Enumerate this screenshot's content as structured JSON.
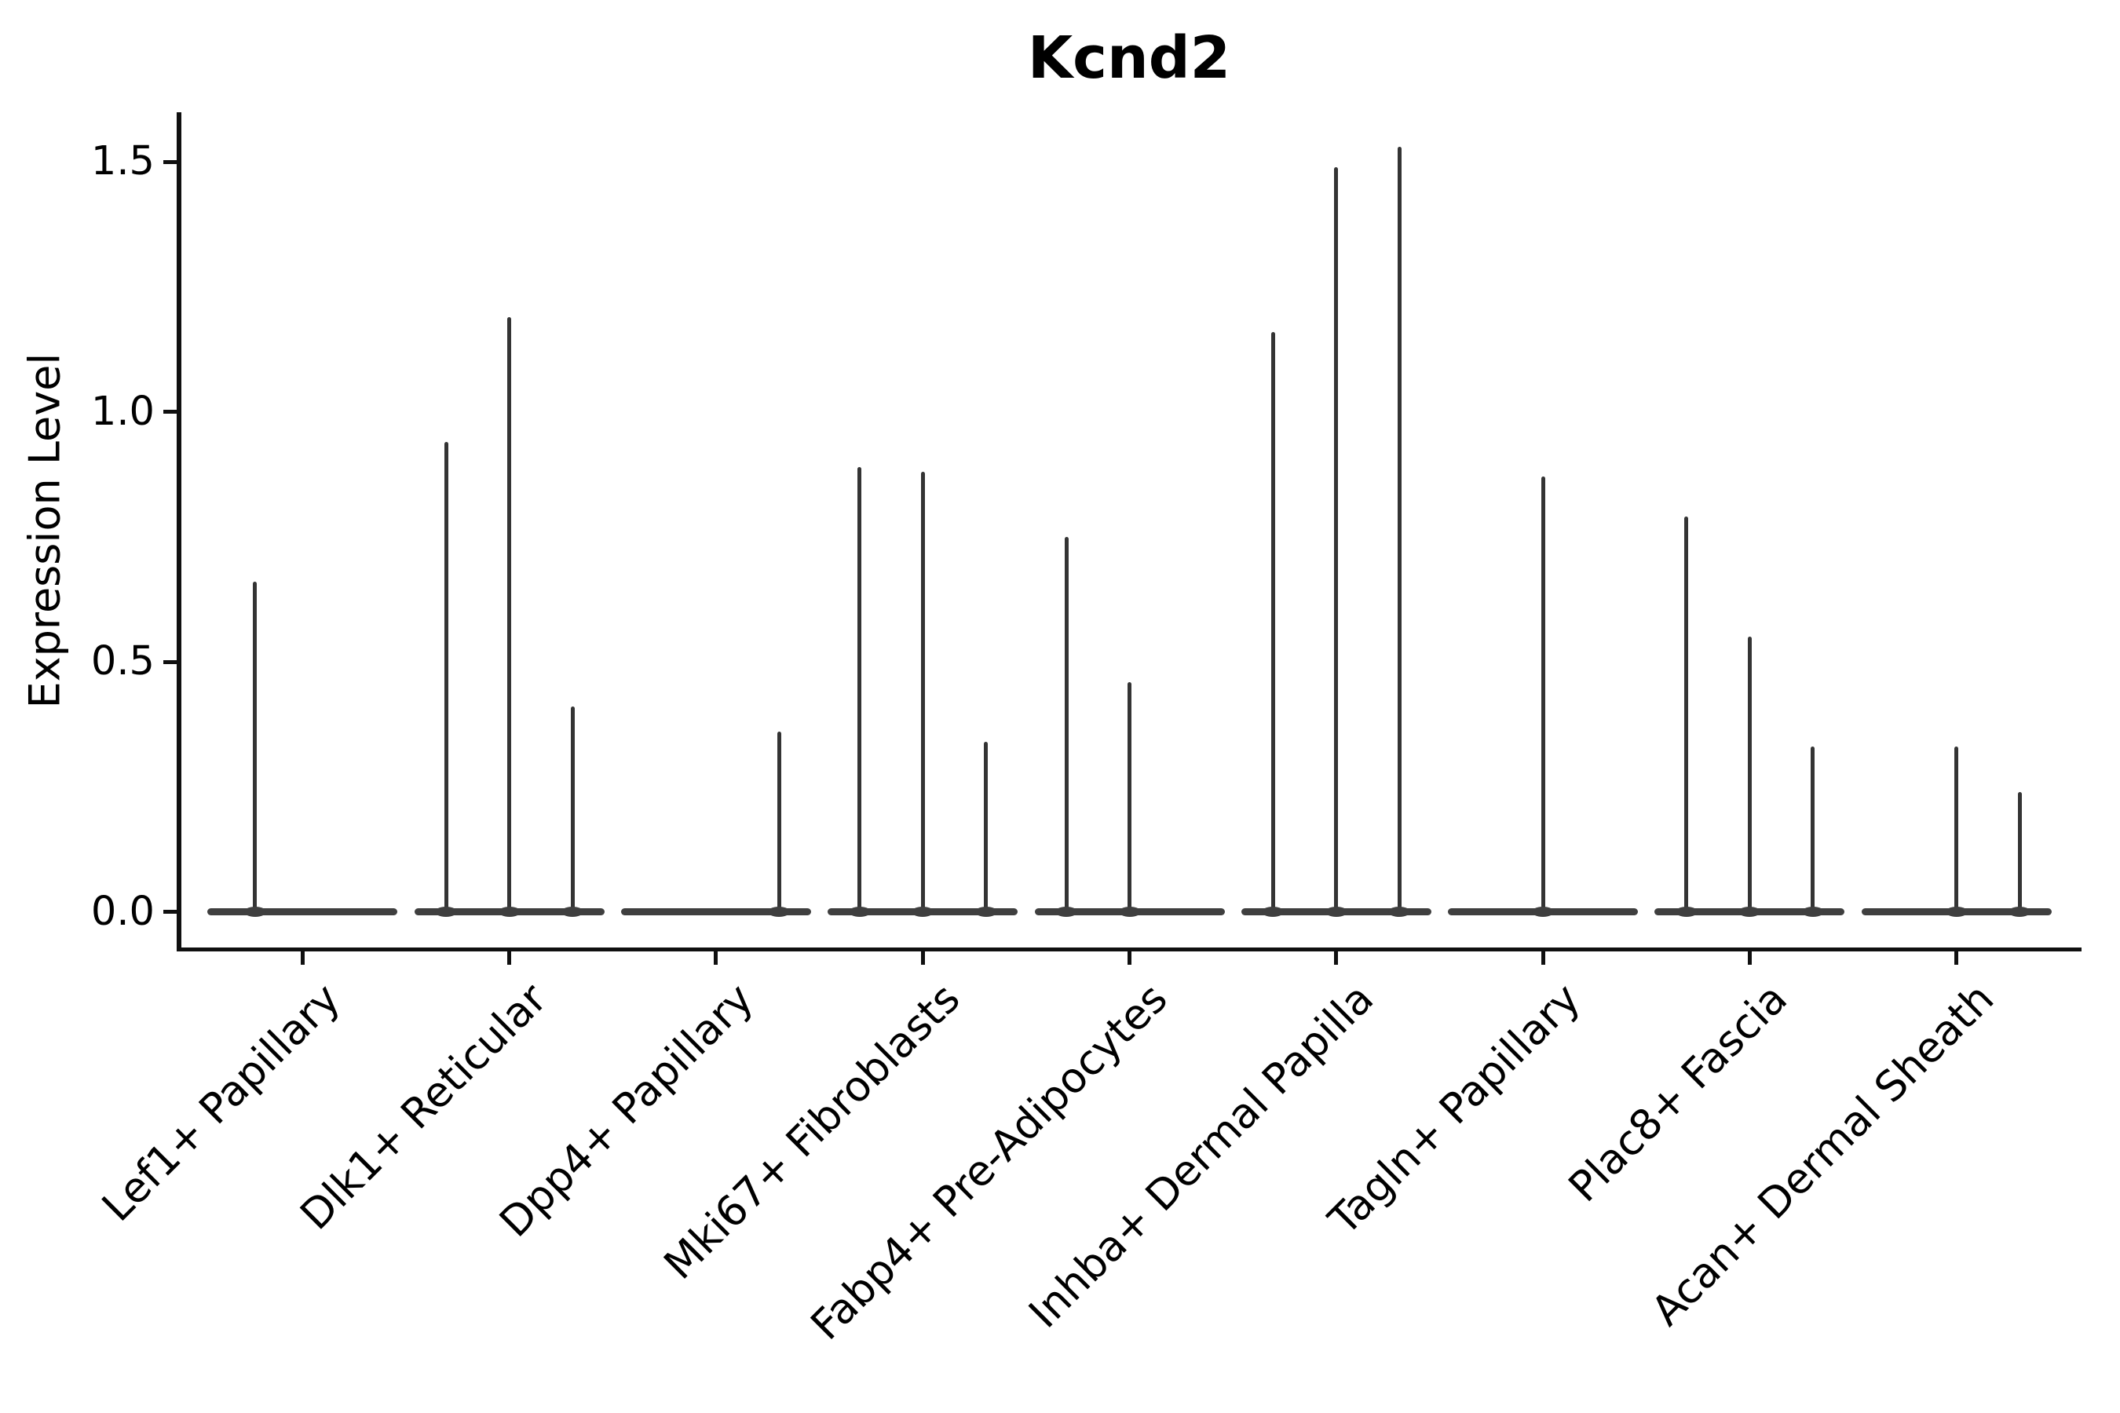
{
  "title": "Kcnd2",
  "y_axis": {
    "label": "Expression Level",
    "tick_labels": [
      "0.0",
      "0.5",
      "1.0",
      "1.5"
    ],
    "tick_values": [
      0.0,
      0.5,
      1.0,
      1.5
    ]
  },
  "x_axis": {
    "categories": [
      "Lef1+ Papillary",
      "Dlk1+ Reticular",
      "Dpp4+ Papillary",
      "Mki67+ Fibroblasts",
      "Fabp4+ Pre-Adipocytes",
      "Inhba+ Dermal Papilla",
      "Tagln+ Papillary",
      "Plac8+ Fascia",
      "Acan+ Dermal Sheath"
    ]
  },
  "chart_data": {
    "type": "violin",
    "title": "Kcnd2",
    "xlabel": "",
    "ylabel": "Expression Level",
    "ylim": [
      -0.08,
      1.61
    ],
    "yticks": [
      0.0,
      0.5,
      1.0,
      1.5
    ],
    "grid": false,
    "legend": "none",
    "description": "Violin plot of Kcnd2 expression per cluster; each cluster holds 2-3 dodged violins that are flat at 0 with a thin spike up to the max expression value.",
    "groups": [
      {
        "category": "Lef1+ Papillary",
        "n_violins": 2,
        "violins": [
          {
            "slot": 0,
            "max_expression": 0.66
          },
          {
            "slot": 1,
            "max_expression": 0
          }
        ]
      },
      {
        "category": "Dlk1+ Reticular",
        "n_violins": 3,
        "violins": [
          {
            "slot": 0,
            "max_expression": 0.94
          },
          {
            "slot": 1,
            "max_expression": 1.19
          },
          {
            "slot": 2,
            "max_expression": 0.41
          }
        ]
      },
      {
        "category": "Dpp4+ Papillary",
        "n_violins": 3,
        "violins": [
          {
            "slot": 0,
            "max_expression": 0
          },
          {
            "slot": 1,
            "max_expression": 0
          },
          {
            "slot": 2,
            "max_expression": 0.36
          }
        ]
      },
      {
        "category": "Mki67+ Fibroblasts",
        "n_violins": 3,
        "violins": [
          {
            "slot": 0,
            "max_expression": 0.89
          },
          {
            "slot": 1,
            "max_expression": 0.88
          },
          {
            "slot": 2,
            "max_expression": 0.34
          }
        ]
      },
      {
        "category": "Fabp4+ Pre-Adipocytes",
        "n_violins": 3,
        "violins": [
          {
            "slot": 0,
            "max_expression": 0.75
          },
          {
            "slot": 1,
            "max_expression": 0.46
          },
          {
            "slot": 2,
            "max_expression": 0
          }
        ]
      },
      {
        "category": "Inhba+ Dermal Papilla",
        "n_violins": 3,
        "violins": [
          {
            "slot": 0,
            "max_expression": 1.16
          },
          {
            "slot": 1,
            "max_expression": 1.49
          },
          {
            "slot": 2,
            "max_expression": 1.53
          }
        ]
      },
      {
        "category": "Tagln+ Papillary",
        "n_violins": 3,
        "violins": [
          {
            "slot": 0,
            "max_expression": 0
          },
          {
            "slot": 1,
            "max_expression": 0.87
          },
          {
            "slot": 2,
            "max_expression": 0
          }
        ]
      },
      {
        "category": "Plac8+ Fascia",
        "n_violins": 3,
        "violins": [
          {
            "slot": 0,
            "max_expression": 0.79
          },
          {
            "slot": 1,
            "max_expression": 0.55
          },
          {
            "slot": 2,
            "max_expression": 0.33
          }
        ]
      },
      {
        "category": "Acan+ Dermal Sheath",
        "n_violins": 3,
        "violins": [
          {
            "slot": 0,
            "max_expression": 0
          },
          {
            "slot": 1,
            "max_expression": 0.33
          },
          {
            "slot": 2,
            "max_expression": 0.24
          }
        ]
      }
    ],
    "colors": {
      "violin": "#3a3a3a",
      "axis": "#101010",
      "text": "#000000",
      "background": "#ffffff"
    }
  }
}
